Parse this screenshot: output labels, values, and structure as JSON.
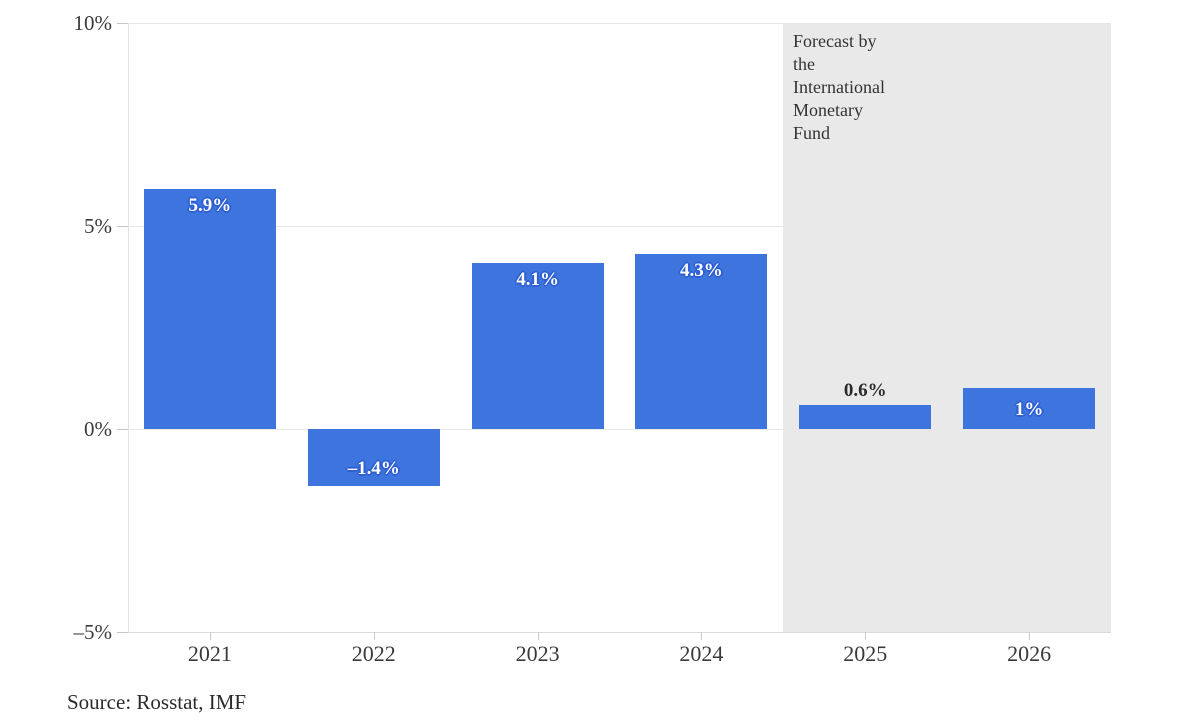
{
  "chart_data": {
    "type": "bar",
    "title": "",
    "xlabel": "",
    "ylabel": "",
    "ylim": [
      -5,
      10
    ],
    "grid": true,
    "categories": [
      "2021",
      "2022",
      "2023",
      "2024",
      "2025",
      "2026"
    ],
    "values": [
      5.9,
      -1.4,
      4.1,
      4.3,
      0.6,
      1.0
    ],
    "bar_labels": [
      "5.9%",
      "–1.4%",
      "4.1%",
      "4.3%",
      "0.6%",
      "1%"
    ],
    "bar_label_styles": [
      "inside-top",
      "inside-bottom",
      "inside-top",
      "inside-top",
      "above",
      "center"
    ],
    "y_ticks": [
      {
        "value": 10,
        "label": "10%"
      },
      {
        "value": 5,
        "label": "5%"
      },
      {
        "value": 0,
        "label": "0%"
      },
      {
        "value": -5,
        "label": "–5%"
      }
    ],
    "forecast_span": {
      "categories": [
        "2025",
        "2026"
      ]
    },
    "annotation": "Forecast by\nthe\nInternational\nMonetary\nFund",
    "source": "Source: Rosstat, IMF",
    "colors": {
      "bar": "#3e74de",
      "bar_label_halo": "#2e5fd3",
      "forecast_bg": "#e9e9e9",
      "grid": "#e7e7e7",
      "axis_text": "#3a3a3a"
    }
  }
}
